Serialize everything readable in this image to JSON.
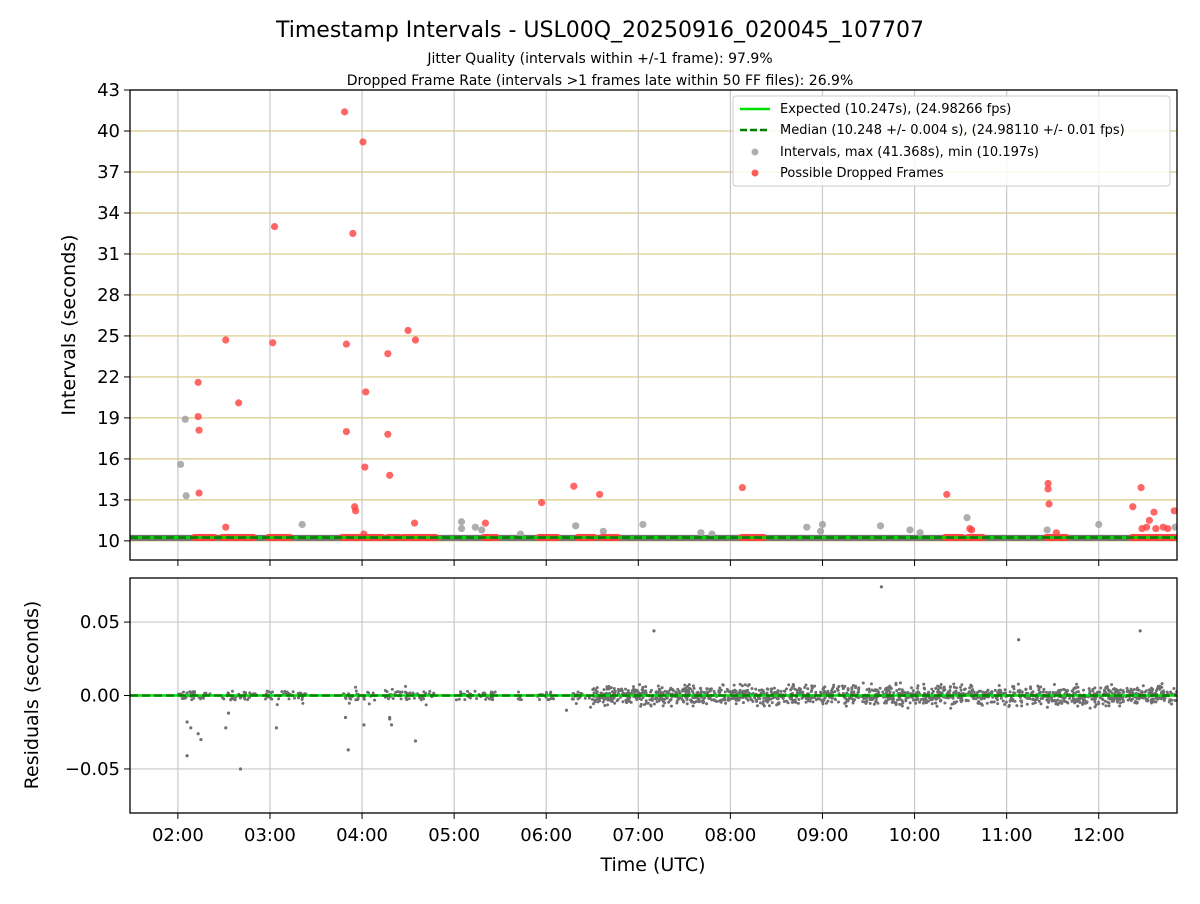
{
  "title": "Timestamp Intervals - USL00Q_20250916_020045_107707",
  "subtitle1": "Jitter Quality (intervals within +/-1 frame): 97.9%",
  "subtitle2": "Dropped Frame Rate (intervals >1 frames late within 50 FF files): 26.9%",
  "colors": {
    "expected": "#00e000",
    "median": "#008000",
    "interval": "#a0a0a0",
    "dropped": "#ff4040",
    "residual": "#707070",
    "hgrid": "#d8c880",
    "vgrid": "#c8c8c8"
  },
  "chart_data": [
    {
      "type": "scatter",
      "name": "intervals-panel",
      "ylabel": "Intervals (seconds)",
      "xlabel": "",
      "xlim": [
        1.48,
        12.85
      ],
      "ylim": [
        8.6,
        43
      ],
      "xticks": [
        2,
        3,
        4,
        5,
        6,
        7,
        8,
        9,
        10,
        11,
        12
      ],
      "xtick_labels": [
        "02:00",
        "03:00",
        "04:00",
        "05:00",
        "06:00",
        "07:00",
        "08:00",
        "09:00",
        "10:00",
        "11:00",
        "12:00"
      ],
      "yticks": [
        10,
        13,
        16,
        19,
        22,
        25,
        28,
        31,
        34,
        37,
        40,
        43
      ],
      "ytick_labels": [
        "10",
        "13",
        "16",
        "19",
        "22",
        "25",
        "28",
        "31",
        "34",
        "37",
        "40",
        "43"
      ],
      "expected": 10.247,
      "median": 10.248,
      "legend_position": "top-right",
      "legend": [
        "Expected (10.247s), (24.98266 fps)",
        "Median (10.248 +/- 0.004 s), (24.98110 +/- 0.01 fps)",
        "Intervals, max (41.368s), min (10.197s)",
        "Possible Dropped Frames"
      ],
      "interval_clusters": [
        [
          1.48,
          6.7
        ],
        [
          6.62,
          12.85
        ]
      ],
      "intervals": [
        [
          2.03,
          15.6
        ],
        [
          2.08,
          18.9
        ],
        [
          2.09,
          13.3
        ],
        [
          3.35,
          11.2
        ],
        [
          5.08,
          11.4
        ],
        [
          5.08,
          10.9
        ],
        [
          5.23,
          11.0
        ],
        [
          5.3,
          10.8
        ],
        [
          5.72,
          10.5
        ],
        [
          6.32,
          11.1
        ],
        [
          6.62,
          10.7
        ],
        [
          7.05,
          11.2
        ],
        [
          7.68,
          10.6
        ],
        [
          7.8,
          10.5
        ],
        [
          8.83,
          11.0
        ],
        [
          9.0,
          11.2
        ],
        [
          8.98,
          10.7
        ],
        [
          9.63,
          11.1
        ],
        [
          9.95,
          10.8
        ],
        [
          10.06,
          10.6
        ],
        [
          10.57,
          11.7
        ],
        [
          11.44,
          10.8
        ],
        [
          12.0,
          11.2
        ],
        [
          12.83,
          11.0
        ]
      ],
      "dropped": [
        [
          2.22,
          21.6
        ],
        [
          2.22,
          19.1
        ],
        [
          2.23,
          18.1
        ],
        [
          2.23,
          13.5
        ],
        [
          2.52,
          24.7
        ],
        [
          2.52,
          11.0
        ],
        [
          2.66,
          20.1
        ],
        [
          3.03,
          24.5
        ],
        [
          3.05,
          33.0
        ],
        [
          3.81,
          41.4
        ],
        [
          3.83,
          24.4
        ],
        [
          3.83,
          18.0
        ],
        [
          3.9,
          32.5
        ],
        [
          3.92,
          12.5
        ],
        [
          3.93,
          12.2
        ],
        [
          4.01,
          39.2
        ],
        [
          4.04,
          20.9
        ],
        [
          4.03,
          15.4
        ],
        [
          4.02,
          10.5
        ],
        [
          4.28,
          23.7
        ],
        [
          4.28,
          17.8
        ],
        [
          4.3,
          14.8
        ],
        [
          4.5,
          25.4
        ],
        [
          4.58,
          24.7
        ],
        [
          4.57,
          11.3
        ],
        [
          5.34,
          11.3
        ],
        [
          5.95,
          12.8
        ],
        [
          6.3,
          14.0
        ],
        [
          6.58,
          13.4
        ],
        [
          8.13,
          13.9
        ],
        [
          10.35,
          13.4
        ],
        [
          10.6,
          10.9
        ],
        [
          10.62,
          10.8
        ],
        [
          11.45,
          14.2
        ],
        [
          11.45,
          13.8
        ],
        [
          11.46,
          12.7
        ],
        [
          11.54,
          10.6
        ],
        [
          12.37,
          12.5
        ],
        [
          12.46,
          13.9
        ],
        [
          12.47,
          10.9
        ],
        [
          12.52,
          11.0
        ],
        [
          12.55,
          11.5
        ],
        [
          12.6,
          12.1
        ],
        [
          12.62,
          10.9
        ],
        [
          12.7,
          11.0
        ],
        [
          12.75,
          10.9
        ],
        [
          12.82,
          12.2
        ]
      ],
      "dropped_runs": [
        [
          2.18,
          2.4
        ],
        [
          2.48,
          2.82
        ],
        [
          2.98,
          3.22
        ],
        [
          3.78,
          4.22
        ],
        [
          4.28,
          4.4
        ],
        [
          4.44,
          4.8
        ],
        [
          5.32,
          5.46
        ],
        [
          5.92,
          6.12
        ],
        [
          6.34,
          6.52
        ],
        [
          6.6,
          6.78
        ],
        [
          8.12,
          8.36
        ],
        [
          10.33,
          10.52
        ],
        [
          10.58,
          10.74
        ],
        [
          11.43,
          11.65
        ],
        [
          12.36,
          12.85
        ]
      ]
    },
    {
      "type": "scatter",
      "name": "residuals-panel",
      "ylabel": "Residuals (seconds)",
      "xlabel": "Time (UTC)",
      "xlim": [
        1.48,
        12.85
      ],
      "ylim": [
        -0.08,
        0.08
      ],
      "xticks": [
        2,
        3,
        4,
        5,
        6,
        7,
        8,
        9,
        10,
        11,
        12
      ],
      "xtick_labels": [
        "02:00",
        "03:00",
        "04:00",
        "05:00",
        "06:00",
        "07:00",
        "08:00",
        "09:00",
        "10:00",
        "11:00",
        "12:00"
      ],
      "yticks": [
        0.05,
        0.0,
        -0.05
      ],
      "ytick_labels": [
        "0.05",
        "0.00",
        "−0.05"
      ],
      "expected": 0.0,
      "median": 0.0,
      "residual_outliers": [
        [
          2.1,
          -0.041
        ],
        [
          2.1,
          -0.018
        ],
        [
          2.14,
          -0.022
        ],
        [
          2.22,
          -0.026
        ],
        [
          2.25,
          -0.03
        ],
        [
          2.52,
          -0.022
        ],
        [
          2.55,
          -0.012
        ],
        [
          2.68,
          -0.05
        ],
        [
          3.07,
          -0.022
        ],
        [
          3.85,
          -0.037
        ],
        [
          3.82,
          -0.015
        ],
        [
          4.02,
          -0.02
        ],
        [
          4.3,
          -0.015
        ],
        [
          4.32,
          -0.02
        ],
        [
          4.3,
          -0.016
        ],
        [
          4.58,
          -0.031
        ],
        [
          6.22,
          -0.01
        ],
        [
          7.17,
          0.044
        ],
        [
          9.64,
          0.074
        ],
        [
          11.13,
          0.038
        ],
        [
          12.45,
          0.044
        ]
      ],
      "sparse_segments": [
        [
          2.0,
          2.35
        ],
        [
          2.45,
          2.85
        ],
        [
          2.95,
          3.4
        ],
        [
          3.78,
          4.15
        ],
        [
          4.25,
          4.78
        ],
        [
          5.02,
          5.45
        ],
        [
          5.68,
          5.75
        ],
        [
          5.9,
          6.1
        ],
        [
          6.28,
          6.5
        ]
      ],
      "dense_range": [
        6.5,
        12.85
      ],
      "dense_spread": 0.006
    }
  ]
}
